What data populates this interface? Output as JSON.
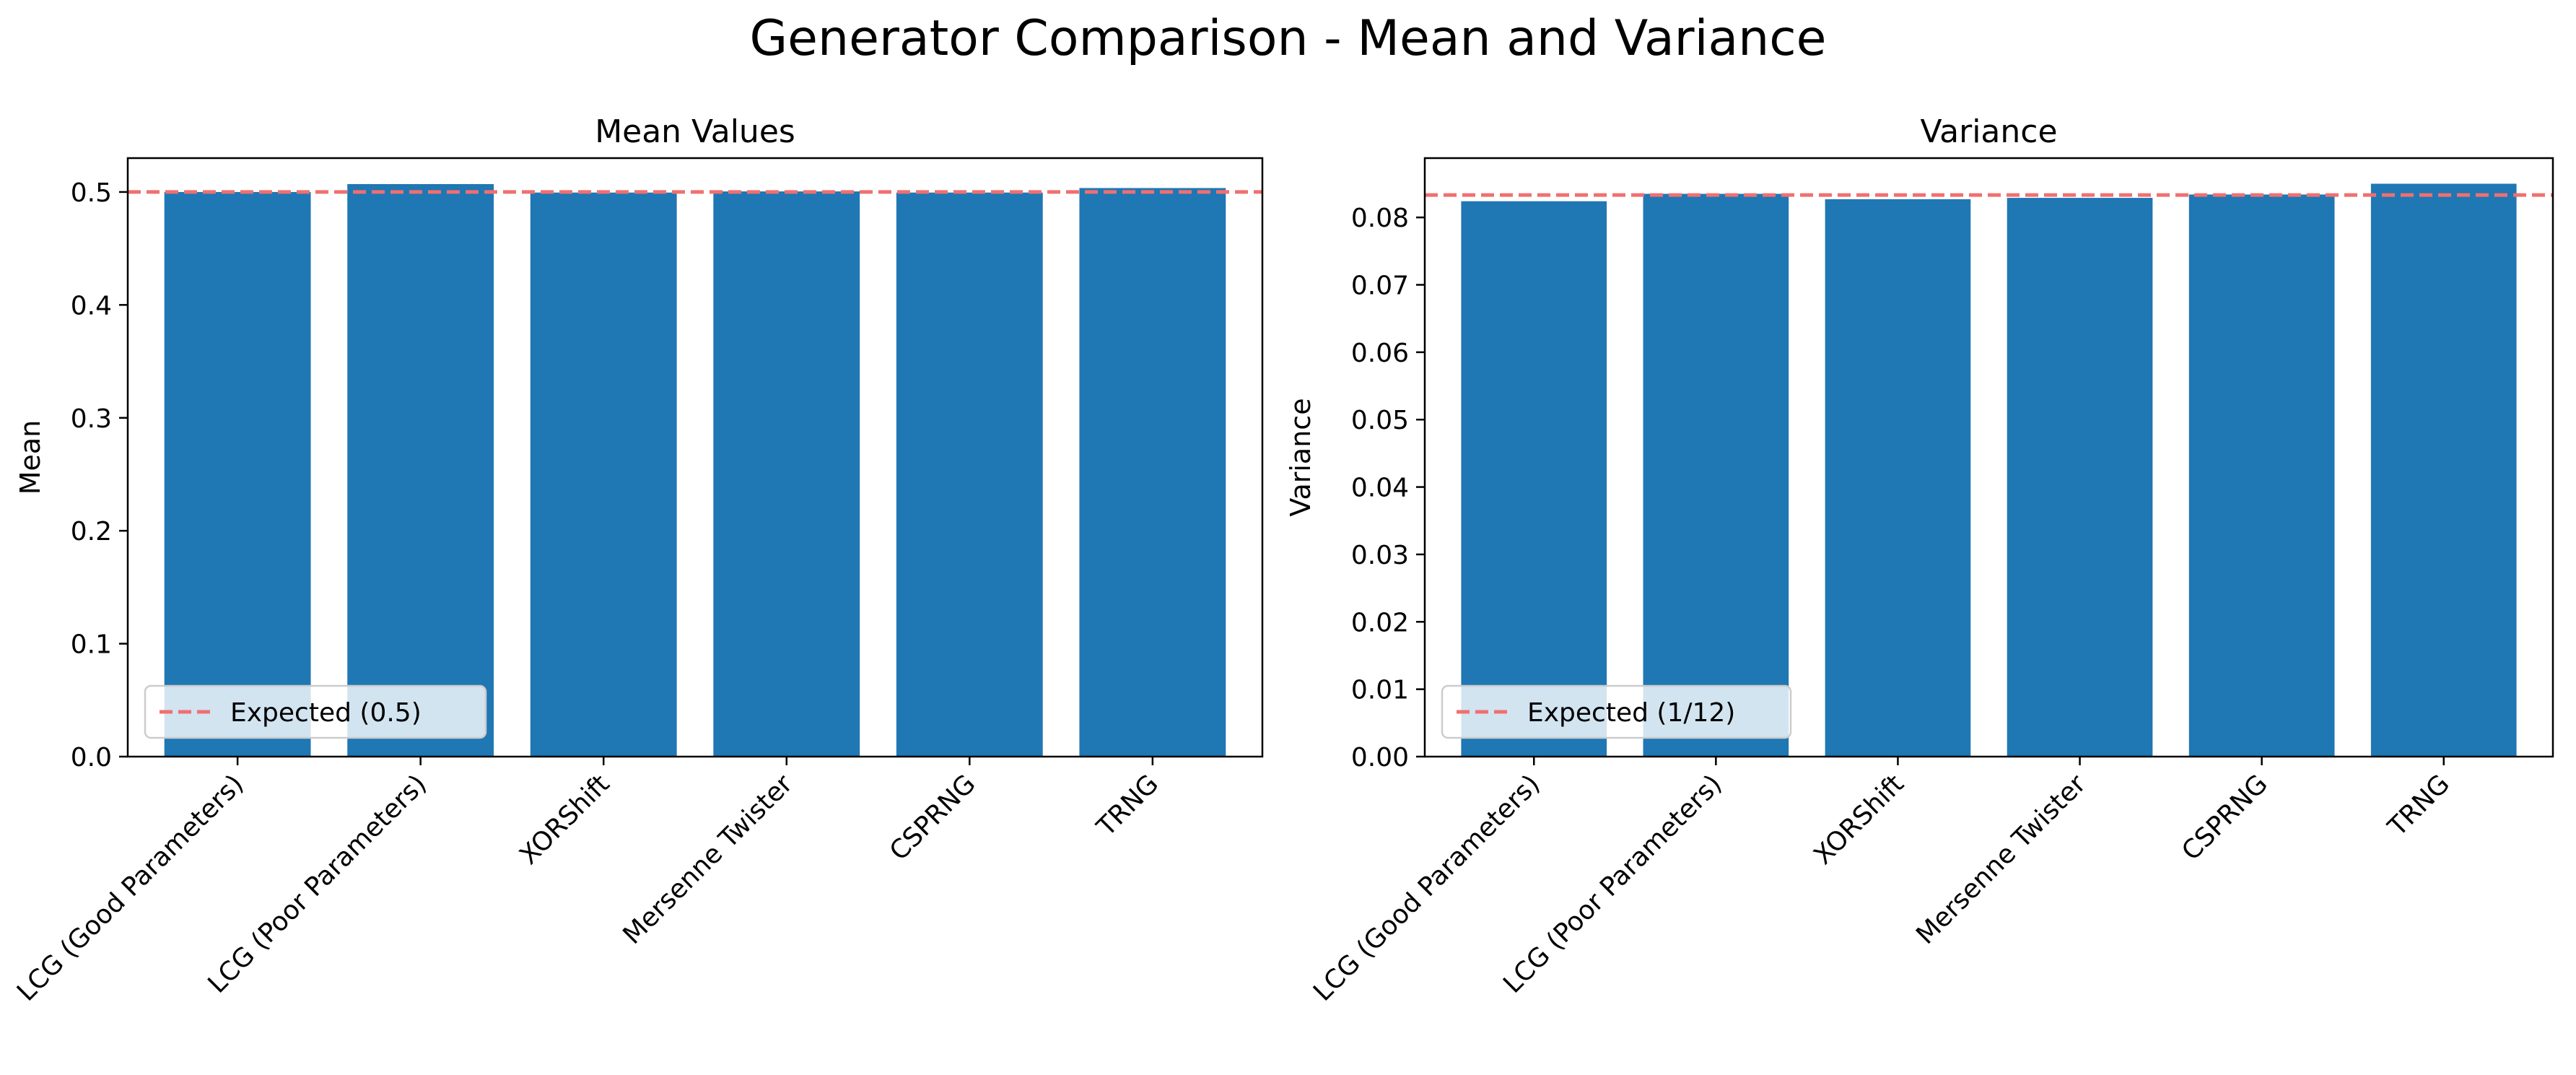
{
  "figure": {
    "title": "Generator Comparison - Mean and Variance"
  },
  "chart_data": [
    {
      "type": "bar",
      "title": "Mean Values",
      "xlabel": "",
      "ylabel": "Mean",
      "categories": [
        "LCG (Good Parameters)",
        "LCG (Poor Parameters)",
        "XORShift",
        "Mersenne Twister",
        "CSPRNG",
        "TRNG"
      ],
      "values": [
        0.5,
        0.507,
        0.4995,
        0.5005,
        0.4995,
        0.5035
      ],
      "ylim": [
        0,
        0.53
      ],
      "yticks": [
        0.0,
        0.1,
        0.2,
        0.3,
        0.4,
        0.5
      ],
      "ytick_labels": [
        "0.0",
        "0.1",
        "0.2",
        "0.3",
        "0.4",
        "0.5"
      ],
      "reference_line": {
        "value": 0.5,
        "label": "Expected (0.5)",
        "color": "#f07070",
        "style": "dashed"
      },
      "bar_color": "#1f77b4",
      "legend_position": "lower-left",
      "grid": false
    },
    {
      "type": "bar",
      "title": "Variance",
      "xlabel": "",
      "ylabel": "Variance",
      "categories": [
        "LCG (Good Parameters)",
        "LCG (Poor Parameters)",
        "XORShift",
        "Mersenne Twister",
        "CSPRNG",
        "TRNG"
      ],
      "values": [
        0.0824,
        0.0835,
        0.0827,
        0.0829,
        0.0834,
        0.085
      ],
      "ylim": [
        0,
        0.0888
      ],
      "yticks": [
        0.0,
        0.01,
        0.02,
        0.03,
        0.04,
        0.05,
        0.06,
        0.07,
        0.08
      ],
      "ytick_labels": [
        "0.00",
        "0.01",
        "0.02",
        "0.03",
        "0.04",
        "0.05",
        "0.06",
        "0.07",
        "0.08"
      ],
      "reference_line": {
        "value": 0.08333,
        "label": "Expected (1/12)",
        "color": "#f07070",
        "style": "dashed"
      },
      "bar_color": "#1f77b4",
      "legend_position": "lower-left",
      "grid": false
    }
  ]
}
